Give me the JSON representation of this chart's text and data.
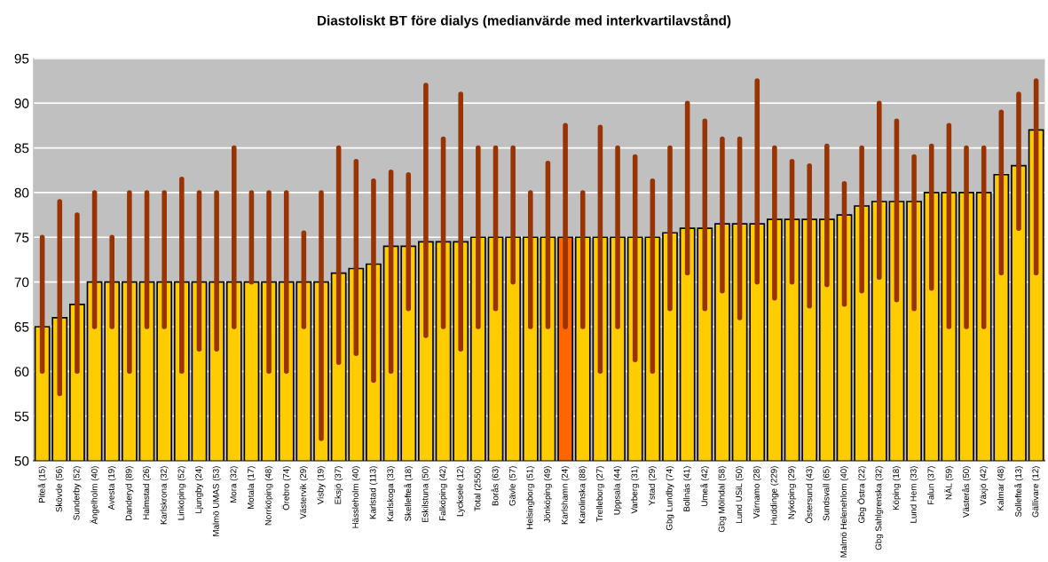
{
  "chart_data": {
    "type": "bar",
    "title": "Diastoliskt BT före dialys (medianvärde med interkvartilavstånd)",
    "categories": [
      "Piteå (15)",
      "Skövde (56)",
      "Sunderby (52)",
      "Ängelholm (40)",
      "Avesta (19)",
      "Danderyd (89)",
      "Halmstad (26)",
      "Karlskrona (32)",
      "Linköping (52)",
      "Ljungby (24)",
      "Malmö UMAS (53)",
      "Mora (32)",
      "Motala (17)",
      "Norrköping (48)",
      "Örebro (74)",
      "Västervik (29)",
      "Visby (19)",
      "Eksjö (37)",
      "Hässleholm (40)",
      "Karlstad (113)",
      "Karlskoga (33)",
      "Skellefteå (18)",
      "Eskilstuna (50)",
      "Falköping (42)",
      "Lycksele (12)",
      "Total (2550)",
      "Borås (63)",
      "Gävle (57)",
      "Helsingborg (51)",
      "Jönköping (49)",
      "Karlshamn (24)",
      "Karolinska (88)",
      "Trelleborg (27)",
      "Uppsala (44)",
      "Varberg (31)",
      "Ystad (29)",
      "Gbg Lundby (74)",
      "Bollnäs (41)",
      "Umeå (42)",
      "Gbg Mölndal (58)",
      "Lund USiL (50)",
      "Värnamo (28)",
      "Huddinge (229)",
      "Nyköping (29)",
      "Östersund (43)",
      "Sundsvall (65)",
      "Malmö Helenehlom (40)",
      "Gbg Östra (22)",
      "Gbg Sahlgrenska (32)",
      "Köping (18)",
      "Lund Hem (33)",
      "Falun (37)",
      "NÄL (59)",
      "Västerås (50)",
      "Växjö (42)",
      "Kalmar (48)",
      "Sollefteå (13)",
      "Gällivare (12)"
    ],
    "values": [
      65,
      66,
      67.5,
      70,
      70,
      70,
      70,
      70,
      70,
      70,
      70,
      70,
      70,
      70,
      70,
      70,
      70,
      71,
      71.5,
      72,
      74,
      74,
      74.5,
      74.5,
      74.5,
      75,
      75,
      75,
      75,
      75,
      75,
      75,
      75,
      75,
      75,
      75,
      75.5,
      76,
      76,
      76.5,
      76.5,
      76.5,
      77,
      77,
      77,
      77,
      77.5,
      78.5,
      79,
      79,
      79,
      80,
      80,
      80,
      80,
      82,
      83,
      87
    ],
    "errors": [
      [
        60,
        75
      ],
      [
        57.5,
        79
      ],
      [
        60,
        77.5
      ],
      [
        65,
        80
      ],
      [
        65,
        75
      ],
      [
        60,
        80
      ],
      [
        65,
        80
      ],
      [
        65,
        80
      ],
      [
        60,
        81.5
      ],
      [
        62.5,
        80
      ],
      [
        62.5,
        80
      ],
      [
        65,
        85
      ],
      [
        70,
        80
      ],
      [
        60,
        80
      ],
      [
        60,
        80
      ],
      [
        65,
        75.5
      ],
      [
        52.5,
        80
      ],
      [
        61,
        85
      ],
      [
        62,
        83.5
      ],
      [
        59,
        81.3
      ],
      [
        60,
        82.3
      ],
      [
        67,
        82
      ],
      [
        64,
        92
      ],
      [
        65,
        86
      ],
      [
        62.5,
        91
      ],
      [
        65,
        85
      ],
      [
        67,
        85
      ],
      [
        70,
        85
      ],
      [
        65,
        80
      ],
      [
        65,
        83.3
      ],
      [
        65,
        87.5
      ],
      [
        65,
        80
      ],
      [
        60,
        87.3
      ],
      [
        65,
        85
      ],
      [
        61.3,
        84
      ],
      [
        60,
        81.3
      ],
      [
        67,
        85
      ],
      [
        71,
        90
      ],
      [
        67,
        88
      ],
      [
        69,
        86
      ],
      [
        66,
        86
      ],
      [
        70,
        92.5
      ],
      [
        68.2,
        85
      ],
      [
        70,
        83.5
      ],
      [
        67.3,
        83
      ],
      [
        69.7,
        85.2
      ],
      [
        67.5,
        81
      ],
      [
        69,
        85
      ],
      [
        70.5,
        90
      ],
      [
        68,
        88
      ],
      [
        67,
        84
      ],
      [
        69.3,
        85.2
      ],
      [
        65,
        87.5
      ],
      [
        65,
        85
      ],
      [
        65,
        85
      ],
      [
        71,
        89
      ],
      [
        76,
        91
      ],
      [
        71,
        92.5
      ]
    ],
    "colors": [
      "#ffcc00",
      "#ffcc00",
      "#ffcc00",
      "#ffcc00",
      "#ffcc00",
      "#ffcc00",
      "#ffcc00",
      "#ffcc00",
      "#ffcc00",
      "#ffcc00",
      "#ffcc00",
      "#ffcc00",
      "#ffcc00",
      "#ffcc00",
      "#ffcc00",
      "#ffcc00",
      "#ffcc00",
      "#ffcc00",
      "#ffcc00",
      "#ffcc00",
      "#ffcc00",
      "#ffcc00",
      "#ffcc00",
      "#ffcc00",
      "#ffcc00",
      "#ffcc00",
      "#ffcc00",
      "#ffcc00",
      "#ffcc00",
      "#ffcc00",
      "#ff6600",
      "#ffcc00",
      "#ffcc00",
      "#ffcc00",
      "#ffcc00",
      "#ffcc00",
      "#ffcc00",
      "#ffcc00",
      "#ffcc00",
      "#ffcc00",
      "#ffcc00",
      "#ffcc00",
      "#ffcc00",
      "#ffcc00",
      "#ffcc00",
      "#ffcc00",
      "#ffcc00",
      "#ffcc00",
      "#ffcc00",
      "#ffcc00",
      "#ffcc00",
      "#ffcc00",
      "#ffcc00",
      "#ffcc00",
      "#ffcc00",
      "#ffcc00",
      "#ffcc00",
      "#ffcc00"
    ],
    "ylim": [
      50,
      95
    ],
    "yticks": [
      50,
      55,
      60,
      65,
      70,
      75,
      80,
      85,
      90,
      95
    ],
    "grid": "y",
    "legend": false
  }
}
